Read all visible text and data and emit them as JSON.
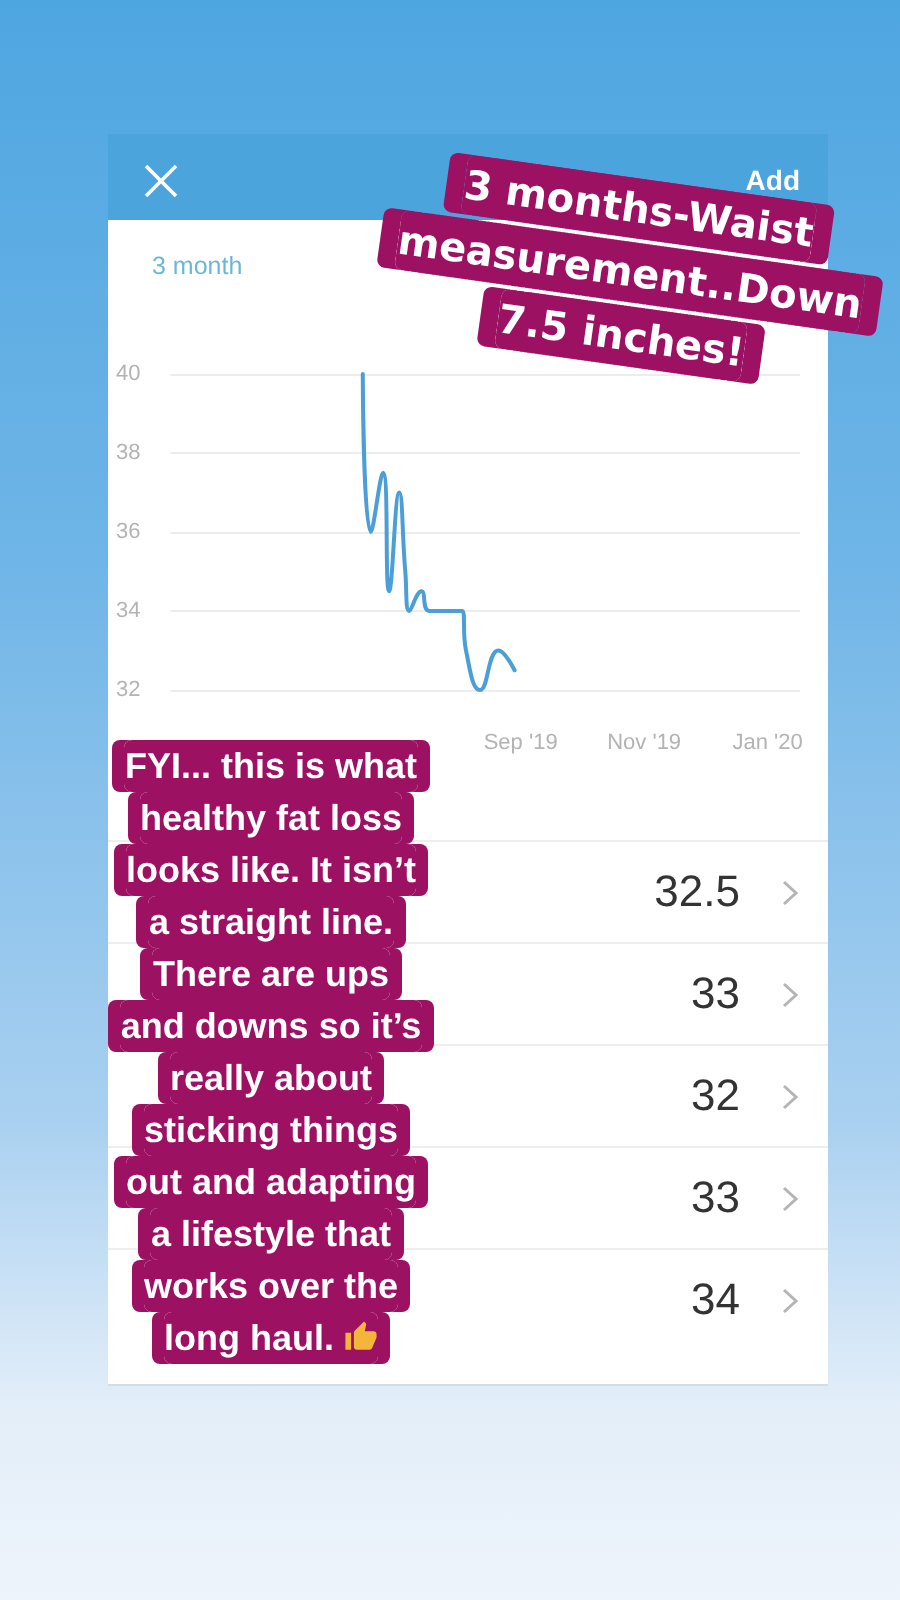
{
  "chart_data": {
    "type": "line",
    "title": "3 months-Waist measurement..Down 7.5 inches!",
    "annotations": [
      "3 month",
      "Add",
      "FYI... this is what healthy fat loss looks like. It isn’t a straight line. There are ups and downs so it’s really about sticking things out and adapting a lifestyle that works over the long haul.",
      "32.5",
      "33",
      "32",
      "33",
      "34"
    ],
    "x": [
      "2019-06-15",
      "2019-06-19",
      "2019-06-25",
      "2019-06-28",
      "2019-07-03",
      "2019-07-06",
      "2019-07-08",
      "2019-07-14",
      "2019-07-18",
      "2019-08-03",
      "2019-08-05",
      "2019-08-12",
      "2019-08-21",
      "2019-08-29"
    ],
    "values": [
      40,
      36,
      37.5,
      34.5,
      37,
      35,
      34,
      34.5,
      34,
      34,
      33,
      32,
      33,
      32.5
    ],
    "color": "#4b9fd6",
    "xlim": [
      "2019-03-12",
      "2020-01-17"
    ],
    "xticks": [
      {
        "value": "2019-09-01",
        "label": "Sep '19"
      },
      {
        "value": "2019-11-01",
        "label": "Nov '19"
      },
      {
        "value": "2020-01-01",
        "label": "Jan '20"
      }
    ],
    "ylim": [
      32,
      40
    ],
    "yticks": [
      32,
      34,
      36,
      38,
      40
    ],
    "grid": "y"
  }
}
